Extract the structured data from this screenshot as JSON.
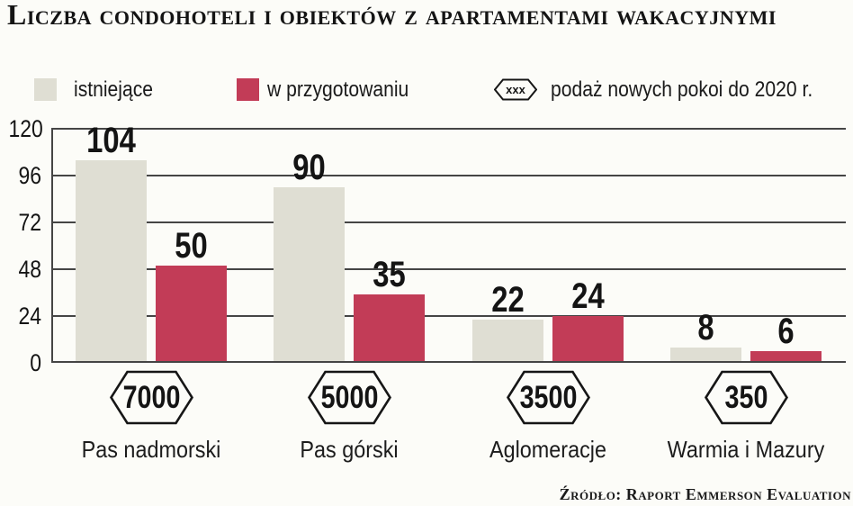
{
  "title": "Liczba condohoteli i obiektów z apartamentami wakacyjnymi",
  "legend": {
    "existing_label": "istniejące",
    "preparing_label": "w przygotowaniu",
    "badge_symbol": "xxx",
    "badge_label": "podaż nowych pokoi do 2020 r."
  },
  "source": "Źródło: Raport Emmerson Evaluation",
  "colors": {
    "existing": "#dfded3",
    "preparing": "#c23c57",
    "grid": "#454545",
    "background": "#fcfcf8",
    "text": "#161616"
  },
  "chart_data": {
    "type": "bar",
    "categories": [
      "Pas nadmorski",
      "Pas górski",
      "Aglomeracje",
      "Warmia i Mazury"
    ],
    "series": [
      {
        "name": "istniejące",
        "color": "#dfded3",
        "values": [
          104,
          90,
          22,
          8
        ]
      },
      {
        "name": "w przygotowaniu",
        "color": "#c23c57",
        "values": [
          50,
          35,
          24,
          6
        ]
      }
    ],
    "badges": [
      "7000",
      "5000",
      "3500",
      "350"
    ],
    "badges_label": "podaż nowych pokoi do 2020 r.",
    "yticks": [
      0,
      24,
      48,
      72,
      96,
      120
    ],
    "ylim": [
      0,
      120
    ],
    "grid": true,
    "legend_position": "top"
  }
}
